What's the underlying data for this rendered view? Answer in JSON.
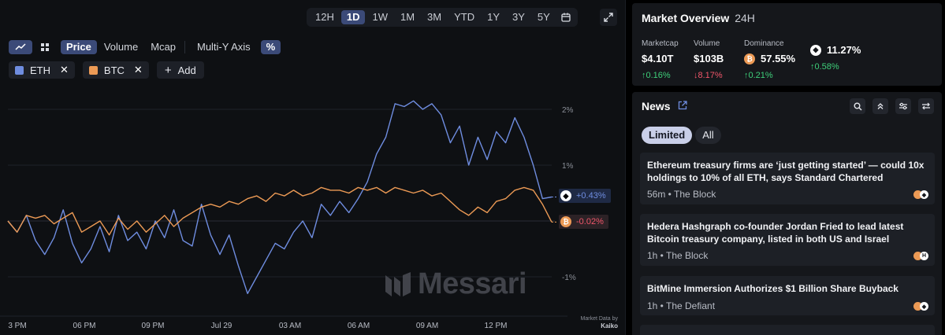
{
  "colors": {
    "eth": "#6f8de0",
    "btc": "#ec9a55",
    "accent": "#3b4a78",
    "up": "#3ecf7a",
    "down": "#f0566a"
  },
  "timeframes": [
    "12H",
    "1D",
    "1W",
    "1M",
    "3M",
    "YTD",
    "1Y",
    "3Y",
    "5Y"
  ],
  "active_timeframe": "1D",
  "toolbar": {
    "price": "Price",
    "volume": "Volume",
    "mcap": "Mcap",
    "multi_y": "Multi-Y Axis",
    "percent": "%"
  },
  "series_chips": [
    {
      "label": "ETH"
    },
    {
      "label": "BTC"
    }
  ],
  "add_label": "Add",
  "watermark": "Messari",
  "credit": {
    "line1": "Market Data by",
    "line2": "Kaiko"
  },
  "chart_data": {
    "type": "line",
    "x_ticks": [
      "3 PM",
      "06 PM",
      "09 PM",
      "Jul 29",
      "03 AM",
      "06 AM",
      "09 AM",
      "12 PM"
    ],
    "y_ticks": [
      "2%",
      "1%",
      "-1%"
    ],
    "ylim": [
      -1.5,
      2.3
    ],
    "series": [
      {
        "name": "ETH",
        "last_label": "+0.43%",
        "values": [
          0.0,
          -0.2,
          0.1,
          -0.35,
          -0.6,
          -0.3,
          0.2,
          -0.4,
          -0.75,
          -0.5,
          -0.1,
          -0.55,
          0.1,
          -0.35,
          -0.2,
          -0.5,
          0.0,
          -0.3,
          0.2,
          -0.35,
          -0.45,
          0.3,
          -0.25,
          -0.6,
          -0.25,
          -0.8,
          -1.3,
          -1.0,
          -0.7,
          -0.4,
          -0.5,
          -0.2,
          0.0,
          -0.3,
          0.3,
          0.1,
          0.35,
          0.15,
          0.4,
          0.7,
          1.2,
          1.5,
          2.1,
          2.05,
          2.15,
          2.0,
          2.1,
          1.9,
          1.4,
          1.7,
          1.0,
          1.5,
          1.1,
          1.6,
          1.4,
          1.85,
          1.5,
          1.0,
          0.4,
          0.43
        ]
      },
      {
        "name": "BTC",
        "last_label": "-0.02%",
        "values": [
          0.0,
          -0.2,
          0.1,
          0.05,
          0.1,
          -0.05,
          0.05,
          0.15,
          -0.2,
          -0.1,
          0.0,
          -0.25,
          0.05,
          -0.15,
          0.0,
          -0.2,
          -0.05,
          0.1,
          -0.1,
          0.05,
          0.15,
          0.25,
          0.3,
          0.25,
          0.35,
          0.3,
          0.4,
          0.45,
          0.35,
          0.5,
          0.45,
          0.55,
          0.45,
          0.5,
          0.6,
          0.55,
          0.55,
          0.5,
          0.6,
          0.55,
          0.6,
          0.5,
          0.6,
          0.55,
          0.5,
          0.55,
          0.45,
          0.5,
          0.35,
          0.2,
          0.1,
          0.25,
          0.15,
          0.35,
          0.4,
          0.55,
          0.6,
          0.55,
          0.3,
          -0.02
        ]
      }
    ]
  },
  "overview": {
    "title": "Market Overview",
    "period": "24H",
    "metrics": [
      {
        "label": "Marketcap",
        "value": "$4.10T",
        "change": "↑0.16%",
        "dir": "up"
      },
      {
        "label": "Volume",
        "value": "$103B",
        "change": "↓8.17%",
        "dir": "down"
      },
      {
        "label": "Dominance",
        "value": "57.55%",
        "change": "↑0.21%",
        "dir": "up",
        "coin": "btc"
      },
      {
        "label": "",
        "value": "11.27%",
        "change": "↑0.58%",
        "dir": "up",
        "coin": "eth"
      }
    ]
  },
  "news": {
    "title": "News",
    "filters": [
      "Limited",
      "All"
    ],
    "items": [
      {
        "headline": "Ethereum treasury firms are ‘just getting started’ — could 10x holdings to 10% of all ETH, says Standard Chartered",
        "meta": "56m • The Block"
      },
      {
        "headline": "Hedera Hashgraph co-founder Jordan Fried to lead latest Bitcoin treasury company, listed in both US and Israel",
        "meta": "1h • The Block"
      },
      {
        "headline": "BitMine Immersion Authorizes $1 Billion Share Buyback",
        "meta": "1h • The Defiant"
      }
    ]
  }
}
